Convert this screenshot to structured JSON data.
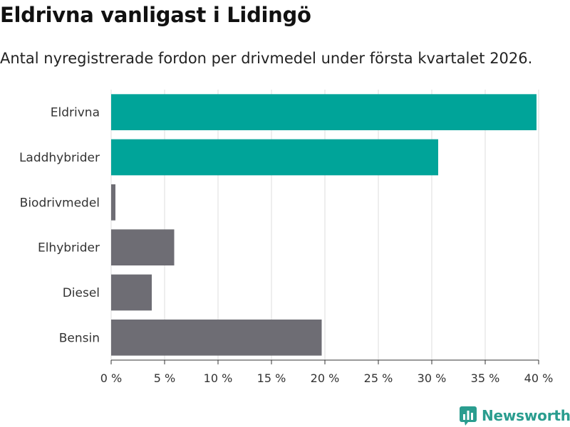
{
  "title": "Eldrivna vanligast i Lidingö",
  "subtitle": "Antal nyregistrerade fordon per drivmedel under första kvartalet 2026.",
  "brand": {
    "name": "Newsworthy",
    "icon": "newsworthy-logo-icon"
  },
  "colors": {
    "highlight": "#00a499",
    "other": "#6e6d74",
    "grid": "#dddddd",
    "axis": "#333333",
    "brand": "#2a9d8f"
  },
  "chart_data": {
    "type": "bar",
    "orientation": "horizontal",
    "title": "Eldrivna vanligast i Lidingö",
    "subtitle": "Antal nyregistrerade fordon per drivmedel under första kvartalet 2026.",
    "xlabel": "",
    "ylabel": "",
    "categories": [
      "Eldrivna",
      "Laddhybrider",
      "Biodrivmedel",
      "Elhybrider",
      "Diesel",
      "Bensin"
    ],
    "values": [
      39.8,
      30.6,
      0.4,
      5.9,
      3.8,
      19.7
    ],
    "highlighted": [
      true,
      true,
      false,
      false,
      false,
      false
    ],
    "xlim": [
      0,
      40
    ],
    "xticks": [
      0,
      5,
      10,
      15,
      20,
      25,
      30,
      35,
      40
    ],
    "xtick_labels": [
      "0 %",
      "5 %",
      "10 %",
      "15 %",
      "20 %",
      "25 %",
      "30 %",
      "35 %",
      "40 %"
    ],
    "grid": true,
    "legend": "none"
  }
}
